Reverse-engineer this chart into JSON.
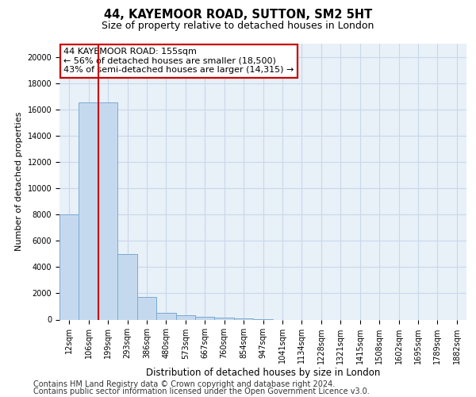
{
  "title": "44, KAYEMOOR ROAD, SUTTON, SM2 5HT",
  "subtitle": "Size of property relative to detached houses in London",
  "xlabel": "Distribution of detached houses by size in London",
  "ylabel": "Number of detached properties",
  "categories": [
    "12sqm",
    "106sqm",
    "199sqm",
    "293sqm",
    "386sqm",
    "480sqm",
    "573sqm",
    "667sqm",
    "760sqm",
    "854sqm",
    "947sqm",
    "1041sqm",
    "1134sqm",
    "1228sqm",
    "1321sqm",
    "1415sqm",
    "1508sqm",
    "1602sqm",
    "1695sqm",
    "1789sqm",
    "1882sqm"
  ],
  "values": [
    8000,
    16500,
    16500,
    5000,
    1750,
    500,
    350,
    200,
    150,
    100,
    50,
    0,
    0,
    0,
    0,
    0,
    0,
    0,
    0,
    0,
    0
  ],
  "bar_color": "#c5d9ee",
  "bar_edgecolor": "#7aaad0",
  "vline_color": "#cc0000",
  "vline_position": 1.5,
  "annotation_text": "44 KAYEMOOR ROAD: 155sqm\n← 56% of detached houses are smaller (18,500)\n43% of semi-detached houses are larger (14,315) →",
  "annotation_box_edgecolor": "#cc0000",
  "annotation_fontsize": 8,
  "ylim": [
    0,
    21000
  ],
  "yticks": [
    0,
    2000,
    4000,
    6000,
    8000,
    10000,
    12000,
    14000,
    16000,
    18000,
    20000
  ],
  "grid_color": "#c8d8ea",
  "background_color": "#ffffff",
  "footer_line1": "Contains HM Land Registry data © Crown copyright and database right 2024.",
  "footer_line2": "Contains public sector information licensed under the Open Government Licence v3.0.",
  "title_fontsize": 10.5,
  "subtitle_fontsize": 9,
  "xlabel_fontsize": 8.5,
  "ylabel_fontsize": 8,
  "tick_fontsize": 7,
  "footer_fontsize": 7
}
